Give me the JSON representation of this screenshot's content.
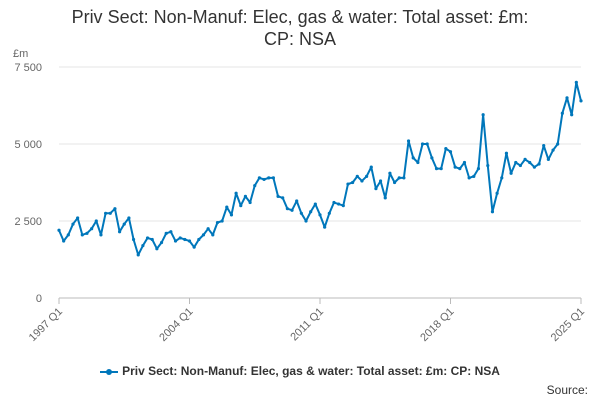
{
  "chart_data": {
    "type": "line",
    "title_lines": [
      "Priv Sect: Non-Manuf: Elec, gas & water: Total asset: £m:",
      "CP: NSA"
    ],
    "unit_label": "£m",
    "ylim": [
      0,
      7500
    ],
    "y_ticks": [
      0,
      2500,
      5000,
      7500
    ],
    "y_tick_labels": [
      "0",
      "2 500",
      "5 000",
      "7 500"
    ],
    "x_range": [
      "1997 Q1",
      "2025 Q1"
    ],
    "x_ticks": [
      "1997 Q1",
      "2004 Q1",
      "2011 Q1",
      "2018 Q1",
      "2025 Q1"
    ],
    "x_tick_labels": [
      "1997 Q1",
      "2004 Q1",
      "2011 Q1",
      "2018 Q1",
      "2025 Q1"
    ],
    "grid": true,
    "legend_position": "bottom",
    "series": [
      {
        "name": "Priv Sect: Non-Manuf: Elec, gas & water: Total asset: £m: CP: NSA",
        "color": "#0077bb",
        "x": [
          "1997 Q1",
          "1997 Q2",
          "1997 Q3",
          "1997 Q4",
          "1998 Q1",
          "1998 Q2",
          "1998 Q3",
          "1998 Q4",
          "1999 Q1",
          "1999 Q2",
          "1999 Q3",
          "1999 Q4",
          "2000 Q1",
          "2000 Q2",
          "2000 Q3",
          "2000 Q4",
          "2001 Q1",
          "2001 Q2",
          "2001 Q3",
          "2001 Q4",
          "2002 Q1",
          "2002 Q2",
          "2002 Q3",
          "2002 Q4",
          "2003 Q1",
          "2003 Q2",
          "2003 Q3",
          "2003 Q4",
          "2004 Q1",
          "2004 Q2",
          "2004 Q3",
          "2004 Q4",
          "2005 Q1",
          "2005 Q2",
          "2005 Q3",
          "2005 Q4",
          "2006 Q1",
          "2006 Q2",
          "2006 Q3",
          "2006 Q4",
          "2007 Q1",
          "2007 Q2",
          "2007 Q3",
          "2007 Q4",
          "2008 Q1",
          "2008 Q2",
          "2008 Q3",
          "2008 Q4",
          "2009 Q1",
          "2009 Q2",
          "2009 Q3",
          "2009 Q4",
          "2010 Q1",
          "2010 Q2",
          "2010 Q3",
          "2010 Q4",
          "2011 Q1",
          "2011 Q2",
          "2011 Q3",
          "2011 Q4",
          "2012 Q1",
          "2012 Q2",
          "2012 Q3",
          "2012 Q4",
          "2013 Q1",
          "2013 Q2",
          "2013 Q3",
          "2013 Q4",
          "2014 Q1",
          "2014 Q2",
          "2014 Q3",
          "2014 Q4",
          "2015 Q1",
          "2015 Q2",
          "2015 Q3",
          "2015 Q4",
          "2016 Q1",
          "2016 Q2",
          "2016 Q3",
          "2016 Q4",
          "2017 Q1",
          "2017 Q2",
          "2017 Q3",
          "2017 Q4",
          "2018 Q1",
          "2018 Q2",
          "2018 Q3",
          "2018 Q4",
          "2019 Q1",
          "2019 Q2",
          "2019 Q3",
          "2019 Q4",
          "2020 Q1",
          "2020 Q2",
          "2020 Q3",
          "2020 Q4",
          "2021 Q1",
          "2021 Q2",
          "2021 Q3",
          "2021 Q4",
          "2022 Q1",
          "2022 Q2",
          "2022 Q3",
          "2022 Q4",
          "2023 Q1",
          "2023 Q2",
          "2023 Q3",
          "2023 Q4",
          "2024 Q1",
          "2024 Q2",
          "2024 Q3",
          "2024 Q4",
          "2025 Q1",
          "2025 Q2"
        ],
        "values": [
          2200,
          1850,
          2050,
          2400,
          2600,
          2050,
          2100,
          2250,
          2500,
          2050,
          2750,
          2750,
          2900,
          2150,
          2400,
          2600,
          1900,
          1400,
          1700,
          1950,
          1900,
          1600,
          1800,
          2100,
          2150,
          1850,
          1950,
          1900,
          1850,
          1650,
          1900,
          2050,
          2250,
          2050,
          2450,
          2500,
          2950,
          2700,
          3400,
          3000,
          3300,
          3100,
          3650,
          3900,
          3850,
          3900,
          3900,
          3300,
          3250,
          2900,
          2850,
          3150,
          2750,
          2500,
          2800,
          3050,
          2700,
          2300,
          2750,
          3100,
          3050,
          3000,
          3700,
          3750,
          3950,
          3800,
          3950,
          4250,
          3550,
          3800,
          3250,
          4050,
          3750,
          3900,
          3900,
          5100,
          4550,
          4400,
          5000,
          5000,
          4550,
          4200,
          4200,
          4850,
          4750,
          4250,
          4200,
          4400,
          3900,
          3950,
          4200,
          5950,
          4300,
          2800,
          3400,
          3900,
          4700,
          4050,
          4400,
          4300,
          4500,
          4400,
          4250,
          4350,
          4950,
          4500,
          4800,
          5000,
          6000,
          6500,
          5950,
          7000,
          6400,
          null
        ]
      }
    ]
  },
  "source_label": "Source:"
}
